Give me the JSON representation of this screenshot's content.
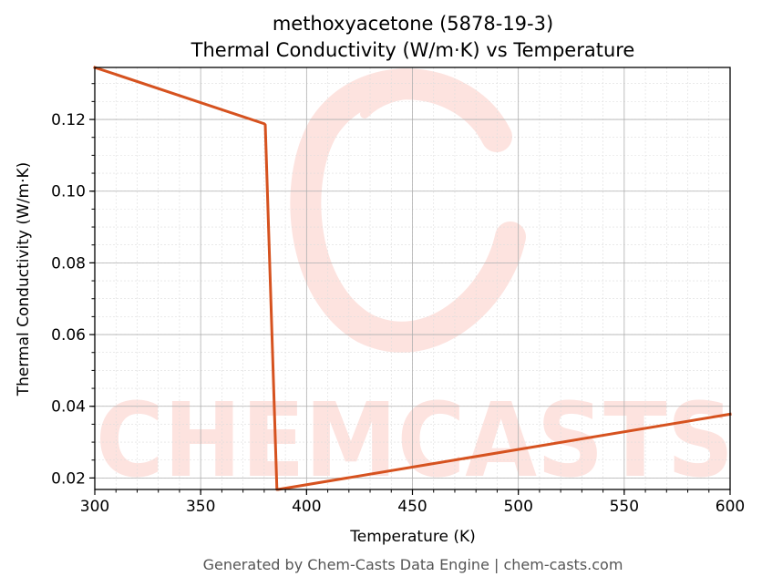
{
  "header": {
    "title_line1": "methoxyacetone (5878-19-3)",
    "title_line2": "Thermal Conductivity (W/m·K) vs Temperature"
  },
  "footer": {
    "text": "Generated by Chem-Casts Data Engine | chem-casts.com"
  },
  "watermark": {
    "text": "CHEMCASTS",
    "color": "#fde3df"
  },
  "chart_data": {
    "type": "line",
    "xlabel": "Temperature (K)",
    "ylabel": "Thermal Conductivity (W/m·K)",
    "xlim": [
      300,
      600
    ],
    "ylim": [
      0.0168,
      0.1345
    ],
    "xticks": [
      300,
      350,
      400,
      450,
      500,
      550,
      600
    ],
    "xtick_labels": [
      "300",
      "350",
      "400",
      "450",
      "500",
      "550",
      "600"
    ],
    "yticks": [
      0.02,
      0.04,
      0.06,
      0.08,
      0.1,
      0.12
    ],
    "ytick_labels": [
      "0.02",
      "0.04",
      "0.06",
      "0.08",
      "0.10",
      "0.12"
    ],
    "grid": true,
    "series": [
      {
        "color": "#d6521f",
        "x": [
          300,
          380,
          380.5,
          386,
          386.5,
          600
        ],
        "y": [
          0.1345,
          0.1188,
          0.1185,
          0.0168,
          0.0168,
          0.0378
        ]
      }
    ]
  }
}
